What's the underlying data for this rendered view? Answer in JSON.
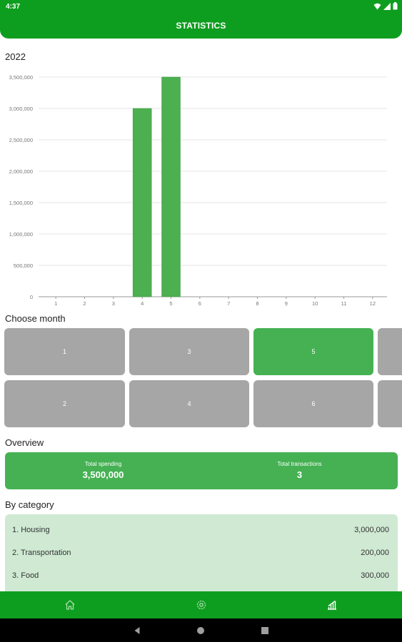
{
  "status": {
    "time": "4:37"
  },
  "header": {
    "title": "STATISTICS"
  },
  "year": "2022",
  "chart_data": {
    "type": "bar",
    "categories": [
      "1",
      "2",
      "3",
      "4",
      "5",
      "6",
      "7",
      "8",
      "9",
      "10",
      "11",
      "12"
    ],
    "values": [
      0,
      0,
      0,
      3000000,
      3500000,
      0,
      0,
      0,
      0,
      0,
      0,
      0
    ],
    "title": "2022",
    "xlabel": "",
    "ylabel": "",
    "ylim": [
      0,
      3500000
    ],
    "yticks": [
      "0",
      "500,000",
      "1,000,000",
      "1,500,000",
      "2,000,000",
      "2,500,000",
      "3,000,000",
      "3,500,000"
    ],
    "grid": true,
    "bar_color": "#4caf50"
  },
  "month_section": {
    "label": "Choose month",
    "months": [
      "1",
      "2",
      "3",
      "4",
      "5",
      "6"
    ],
    "selected": "5"
  },
  "overview": {
    "label": "Overview",
    "total_spending_label": "Total spending",
    "total_spending": "3,500,000",
    "total_transactions_label": "Total transactions",
    "total_transactions": "3"
  },
  "categories": {
    "label": "By category",
    "items": [
      {
        "name": "1. Housing",
        "value": "3,000,000"
      },
      {
        "name": "2. Transportation",
        "value": "200,000"
      },
      {
        "name": "3. Food",
        "value": "300,000"
      }
    ]
  },
  "bottom_nav": {
    "items": [
      "home-icon",
      "settings-icon",
      "statistics-icon"
    ]
  },
  "colors": {
    "primary": "#0e9e1f",
    "accent": "#45b153",
    "unselected": "#a6a6a6",
    "category_bg": "#cfe9d3"
  }
}
